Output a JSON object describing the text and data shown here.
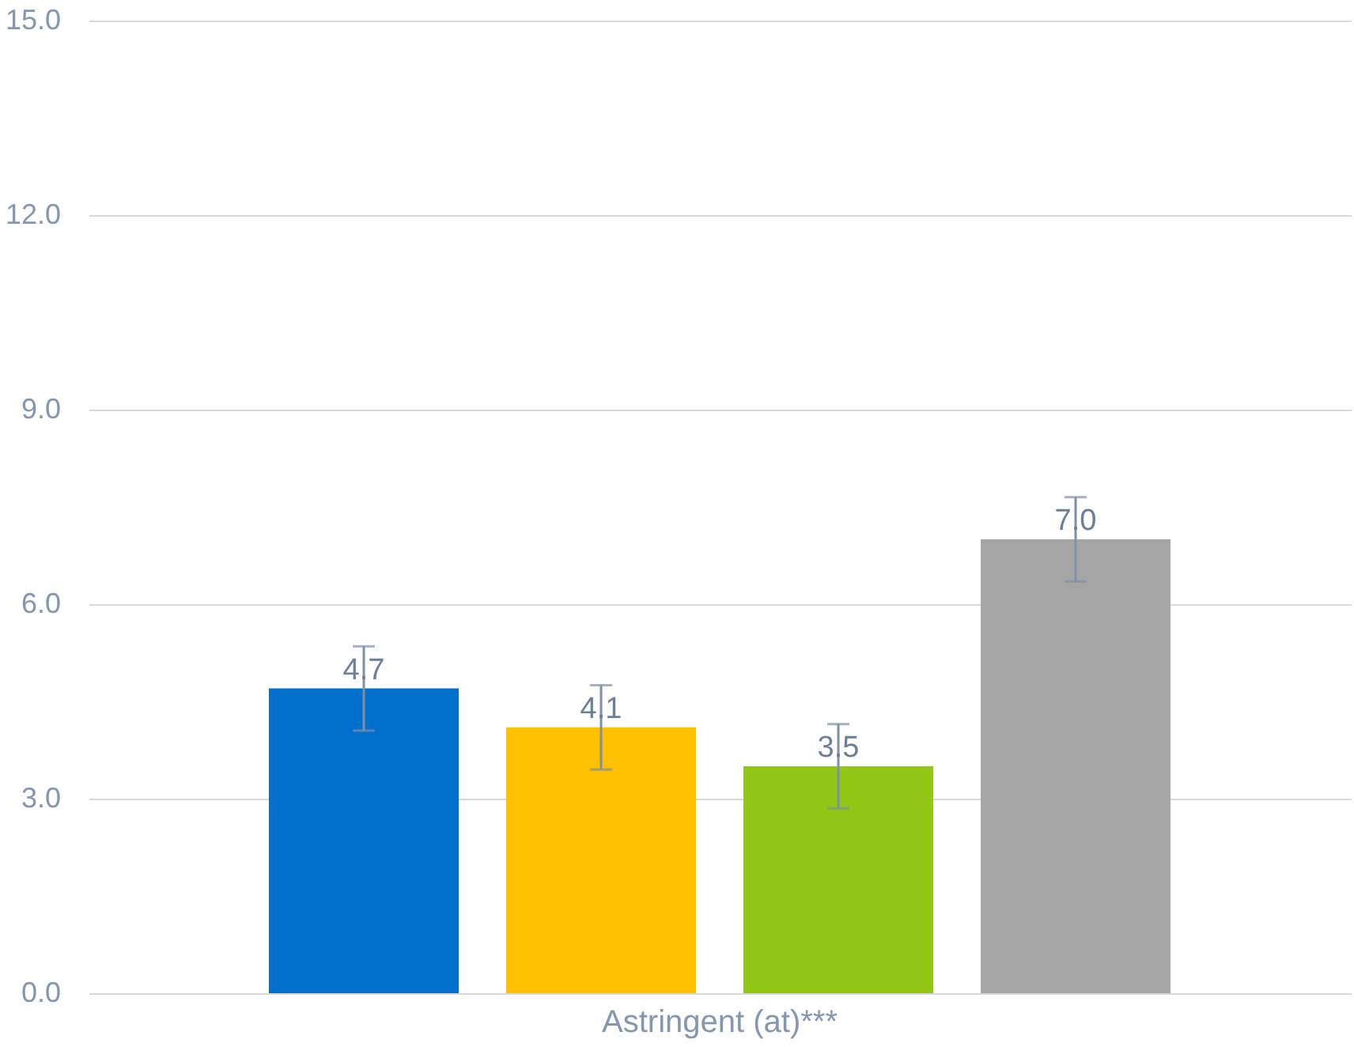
{
  "chart_data": {
    "type": "bar",
    "categories": [
      "Astringent (at)***"
    ],
    "series": [
      {
        "color": "#0070cc",
        "values": [
          4.7
        ],
        "value_labels": [
          "4.7"
        ],
        "errors": [
          0.65
        ]
      },
      {
        "color": "#ffc000",
        "values": [
          4.1
        ],
        "value_labels": [
          "4.1"
        ],
        "errors": [
          0.65
        ]
      },
      {
        "color": "#92c815",
        "values": [
          3.5
        ],
        "value_labels": [
          "3.5"
        ],
        "errors": [
          0.65
        ]
      },
      {
        "color": "#a5a5a5",
        "values": [
          7.0
        ],
        "value_labels": [
          "7.0"
        ],
        "errors": [
          0.65
        ]
      }
    ],
    "ylim": [
      0,
      15
    ],
    "yticks": [
      {
        "value": 0,
        "label": "0.0"
      },
      {
        "value": 3,
        "label": "3.0"
      },
      {
        "value": 6,
        "label": "6.0"
      },
      {
        "value": 9,
        "label": "9.0"
      },
      {
        "value": 12,
        "label": "12.0"
      },
      {
        "value": 15,
        "label": "15.0"
      }
    ],
    "grid": "y",
    "legend": false
  }
}
